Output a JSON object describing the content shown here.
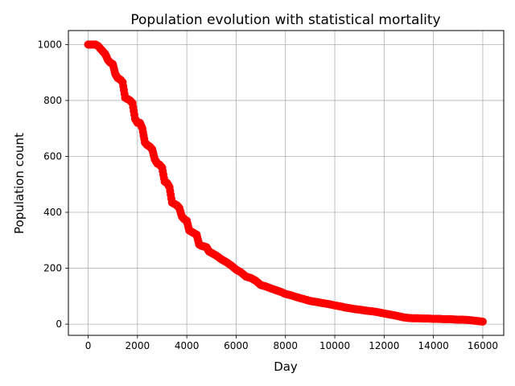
{
  "chart_data": {
    "type": "scatter",
    "title": "Population evolution with statistical mortality",
    "xlabel": "Day",
    "ylabel": "Population count",
    "xlim": [
      -800,
      16850
    ],
    "ylim": [
      -40,
      1050
    ],
    "xticks": [
      0,
      2000,
      4000,
      6000,
      8000,
      10000,
      12000,
      14000,
      16000
    ],
    "xtick_labels": [
      "0",
      "2000",
      "4000",
      "6000",
      "8000",
      "10000",
      "12000",
      "14000",
      "16000"
    ],
    "yticks": [
      0,
      200,
      400,
      600,
      800,
      1000
    ],
    "ytick_labels": [
      "0",
      "200",
      "400",
      "600",
      "800",
      "1000"
    ],
    "grid": true,
    "legend": null,
    "marker_color": "#ff0000",
    "series": [
      {
        "x": [
          0,
          100,
          200,
          300,
          400,
          500,
          600,
          700,
          800,
          900,
          1000,
          1100,
          1200,
          1300,
          1400,
          1500,
          1600,
          1700,
          1800,
          1900,
          2000,
          2100,
          2200,
          2300,
          2400,
          2500,
          2600,
          2700,
          2800,
          2900,
          3000,
          3100,
          3200,
          3300,
          3400,
          3500,
          3600,
          3700,
          3800,
          3900,
          4000,
          4100,
          4200,
          4300,
          4400,
          4500,
          4600,
          4700,
          4800,
          4900,
          5000,
          5200,
          5400,
          5600,
          5800,
          6000,
          6200,
          6400,
          6600,
          6800,
          7000,
          7200,
          7400,
          7600,
          7800,
          8000,
          8200,
          8400,
          8600,
          8800,
          9000,
          9200,
          9400,
          9600,
          9800,
          10000,
          10200,
          10400,
          10600,
          10800,
          11000,
          11200,
          11400,
          11600,
          11800,
          12000,
          12200,
          12400,
          12600,
          12800,
          13000,
          13200,
          13400,
          13600,
          13800,
          14000,
          14200,
          14400,
          14600,
          14800,
          15000,
          15200,
          15400,
          15600,
          15800,
          16000
        ],
        "y": [
          1000,
          1000,
          1000,
          1000,
          995,
          985,
          975,
          965,
          945,
          935,
          930,
          895,
          880,
          875,
          865,
          810,
          805,
          800,
          790,
          735,
          720,
          720,
          700,
          650,
          640,
          635,
          625,
          590,
          575,
          570,
          560,
          510,
          505,
          490,
          435,
          430,
          425,
          415,
          385,
          375,
          370,
          335,
          330,
          325,
          320,
          285,
          280,
          278,
          275,
          260,
          255,
          245,
          232,
          222,
          210,
          195,
          185,
          170,
          165,
          155,
          140,
          135,
          128,
          122,
          116,
          108,
          104,
          98,
          93,
          88,
          83,
          80,
          77,
          74,
          71,
          67,
          64,
          60,
          57,
          54,
          52,
          49,
          47,
          45,
          42,
          38,
          35,
          32,
          28,
          24,
          22,
          21,
          21,
          20,
          20,
          19,
          19,
          18,
          18,
          17,
          16,
          16,
          15,
          13,
          11,
          9
        ]
      }
    ]
  }
}
